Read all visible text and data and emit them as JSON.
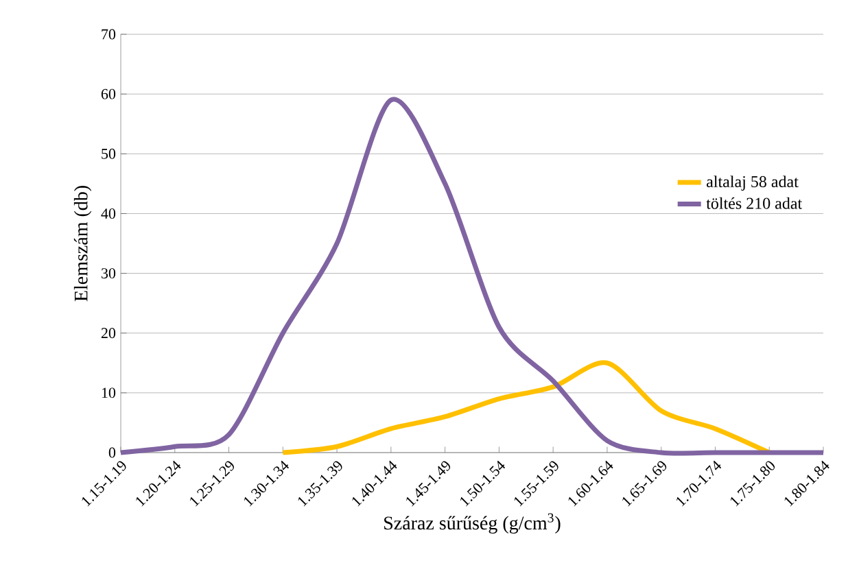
{
  "chart_data": {
    "type": "line",
    "xlabel": "Száraz sűrűség (g/cm$^{3}$)",
    "ylabel": "Elemszám (db)",
    "categories": [
      "1.15-1.19",
      "1.20-1.24",
      "1.25-1.29",
      "1.30-1.34",
      "1.35-1.39",
      "1.40-1.44",
      "1.45-1.49",
      "1.50-1.54",
      "1.55-1.59",
      "1.60-1.64",
      "1.65-1.69",
      "1.70-1.74",
      "1.75-1.80",
      "1.80-1.84"
    ],
    "series": [
      {
        "name": "altalaj 58 adat",
        "color": "#ffc000",
        "values": [
          null,
          null,
          null,
          0,
          1,
          4,
          6,
          9,
          11,
          15,
          7,
          4,
          0,
          null
        ]
      },
      {
        "name": "töltés 210 adat",
        "color": "#8064a2",
        "values": [
          0,
          1,
          3,
          20,
          35,
          59,
          45,
          21,
          12,
          2,
          0,
          0,
          0,
          0
        ]
      }
    ],
    "ylim": [
      0,
      70
    ],
    "yticks": [
      0,
      10,
      20,
      30,
      40,
      50,
      60,
      70
    ],
    "grid": "y",
    "legend": "right",
    "marker": "none",
    "line_style": "solid"
  }
}
